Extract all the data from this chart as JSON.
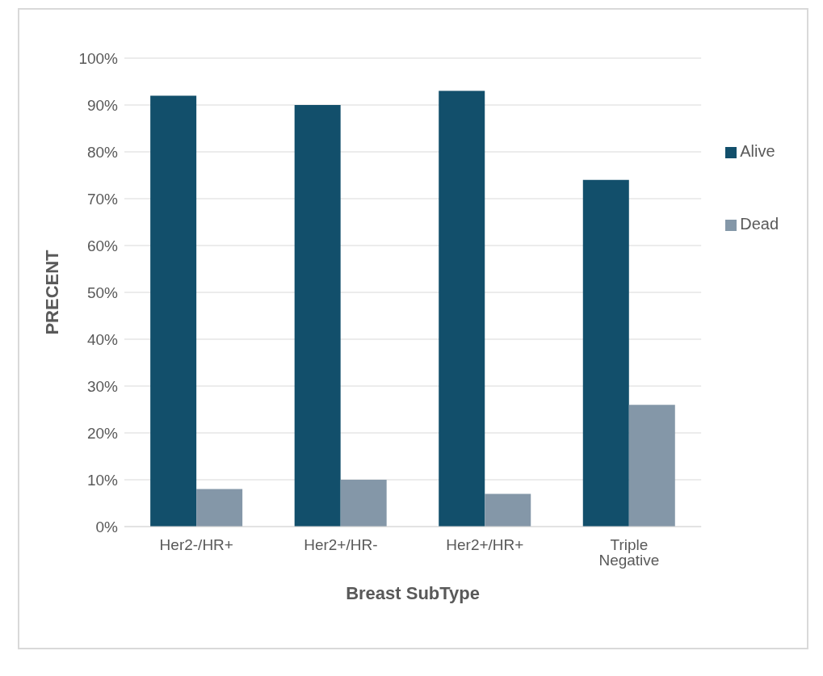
{
  "chart_data": {
    "type": "bar",
    "xlabel": "Breast SubType",
    "ylabel": "PRECENT",
    "categories": [
      "Her2-/HR+",
      "Her2+/HR-",
      "Her2+/HR+",
      "Triple Negative"
    ],
    "series": [
      {
        "name": "Alive",
        "color": "#124f6b",
        "values": [
          92,
          90,
          93,
          74
        ]
      },
      {
        "name": "Dead",
        "color": "#8497a8",
        "values": [
          8,
          10,
          7,
          26
        ]
      }
    ],
    "ylim": [
      0,
      100
    ],
    "yticks": [
      {
        "value": 0,
        "label": "0%"
      },
      {
        "value": 10,
        "label": "10%"
      },
      {
        "value": 20,
        "label": "20%"
      },
      {
        "value": 30,
        "label": "30%"
      },
      {
        "value": 40,
        "label": "40%"
      },
      {
        "value": 50,
        "label": "50%"
      },
      {
        "value": 60,
        "label": "60%"
      },
      {
        "value": 70,
        "label": "70%"
      },
      {
        "value": 80,
        "label": "80%"
      },
      {
        "value": 90,
        "label": "90%"
      },
      {
        "value": 100,
        "label": "100%"
      }
    ],
    "grid": "y",
    "legend": "right"
  }
}
